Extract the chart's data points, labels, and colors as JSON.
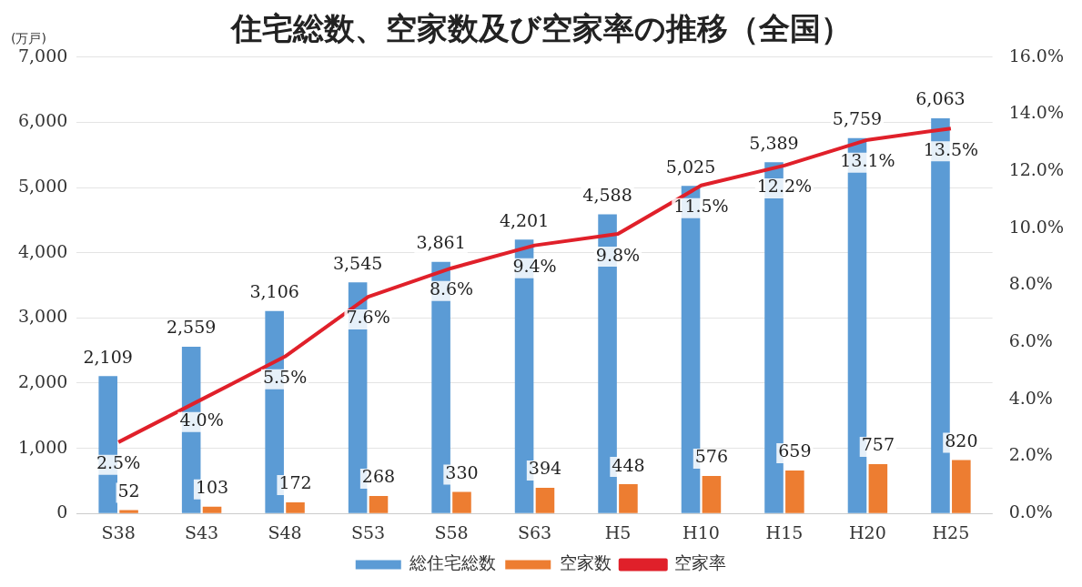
{
  "chart_data": {
    "type": "bar",
    "title": "住宅総数、空家数及び空家率の推移（全国）",
    "ylabel": "(万戸)",
    "categories": [
      "S38",
      "S43",
      "S48",
      "S53",
      "S58",
      "S63",
      "H5",
      "H10",
      "H15",
      "H20",
      "H25"
    ],
    "series": [
      {
        "name": "総住宅総数",
        "color": "#5b9bd5",
        "values": [
          2109,
          2559,
          3106,
          3545,
          3861,
          4201,
          4588,
          5025,
          5389,
          5759,
          6063
        ],
        "value_labels": [
          "2,109",
          "2,559",
          "3,106",
          "3,545",
          "3,861",
          "4,201",
          "4,588",
          "5,025",
          "5,389",
          "5,759",
          "6,063"
        ]
      },
      {
        "name": "空家数",
        "color": "#ed7d31",
        "values": [
          52,
          103,
          172,
          268,
          330,
          394,
          448,
          576,
          659,
          757,
          820
        ],
        "value_labels": [
          "52",
          "103",
          "172",
          "268",
          "330",
          "394",
          "448",
          "576",
          "659",
          "757",
          "820"
        ]
      },
      {
        "name": "空家率",
        "type": "line",
        "axis": "y2",
        "color": "#e0202a",
        "values": [
          2.5,
          4.0,
          5.5,
          7.6,
          8.6,
          9.4,
          9.8,
          11.5,
          12.2,
          13.1,
          13.5
        ],
        "value_labels": [
          "2.5%",
          "4.0%",
          "5.5%",
          "7.6%",
          "8.6%",
          "9.4%",
          "9.8%",
          "11.5%",
          "12.2%",
          "13.1%",
          "13.5%"
        ]
      }
    ],
    "ylim": [
      0,
      7000
    ],
    "yticks": [
      0,
      {
        "value": 1000,
        "label": "1,000"
      },
      {
        "value": 2000,
        "label": "2,000"
      },
      {
        "value": 3000,
        "label": "3,000"
      },
      {
        "value": 4000,
        "label": "4,000"
      },
      {
        "value": 5000,
        "label": "5,000"
      },
      {
        "value": 6000,
        "label": "6,000"
      },
      {
        "value": 7000,
        "label": "7,000"
      }
    ],
    "y2lim": [
      0,
      16
    ],
    "y2ticks": [
      {
        "value": 0,
        "label": "0.0%"
      },
      {
        "value": 2,
        "label": "2.0%"
      },
      {
        "value": 4,
        "label": "4.0%"
      },
      {
        "value": 6,
        "label": "6.0%"
      },
      {
        "value": 8,
        "label": "8.0%"
      },
      {
        "value": 10,
        "label": "10.0%"
      },
      {
        "value": 12,
        "label": "12.0%"
      },
      {
        "value": 14,
        "label": "14.0%"
      },
      {
        "value": 16,
        "label": "16.0%"
      }
    ],
    "grid": "y",
    "legend": "bottom",
    "marker": "none"
  }
}
